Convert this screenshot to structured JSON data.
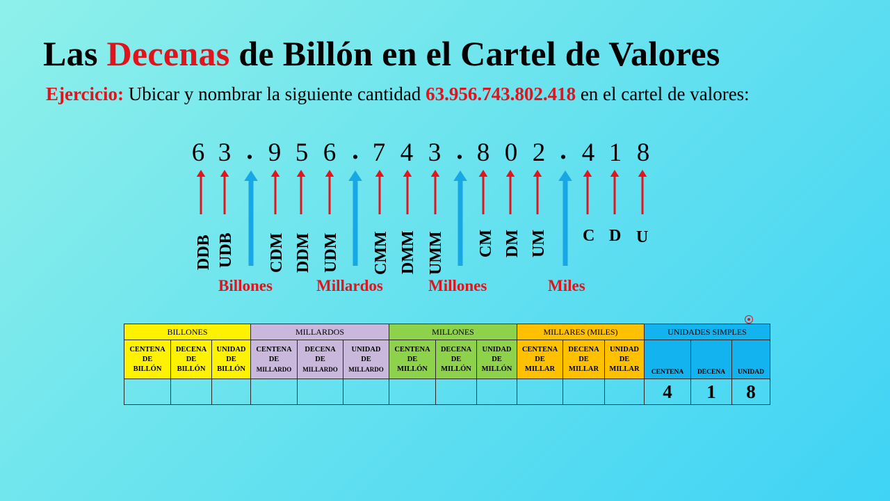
{
  "title": {
    "part1": "Las ",
    "highlight": "Decenas",
    "part2": " de Billón en el Cartel de Valores"
  },
  "exercise": {
    "label": "Ejercicio:",
    "text": " Ubicar y nombrar la siguiente cantidad ",
    "number": "63.956.743.802.418",
    "suffix": " en el cartel de valores:"
  },
  "digits": [
    "6",
    "3",
    ".",
    "9",
    "5",
    "6",
    ".",
    "7",
    "4",
    "3",
    ".",
    "8",
    "0",
    "2",
    ".",
    "4",
    "1",
    "8"
  ],
  "place_labels": [
    "DDB",
    "UDB",
    "CDM",
    "DDM",
    "UDM",
    "CMM",
    "DMM",
    "UMM",
    "CM",
    "DM",
    "UM",
    "C",
    "D",
    "U"
  ],
  "groups": [
    "Billones",
    "Millardos",
    "Millones",
    "Miles"
  ],
  "colors": {
    "accent_red": "#e0141c",
    "arrow_red": "#e3151c",
    "arrow_blue": "#17a6e6"
  },
  "table": {
    "headers": [
      "BILLONES",
      "MILLARDOS",
      "MILLONES",
      "MILLARES (MILES)",
      "UNIDADES SIMPLES"
    ],
    "sub": [
      [
        "CENTENA",
        "DE",
        "BILLÓN"
      ],
      [
        "DECENA",
        "DE",
        "BILLÓN"
      ],
      [
        "UNIDAD",
        "DE",
        "BILLÓN"
      ],
      [
        "CENTENA",
        "DE",
        "MILLARDO"
      ],
      [
        "DECENA",
        "DE",
        "MILLARDO"
      ],
      [
        "UNIDAD",
        "DE",
        "MILLARDO"
      ],
      [
        "CENTENA",
        "DE",
        "MILLÓN"
      ],
      [
        "DECENA",
        "DE",
        "MILLÓN"
      ],
      [
        "UNIDAD",
        "DE",
        "MILLÓN"
      ],
      [
        "CENTENA",
        "DE",
        "MILLAR"
      ],
      [
        "DECENA",
        "DE",
        "MILLAR"
      ],
      [
        "UNIDAD",
        "DE",
        "MILLAR"
      ],
      [
        "CENTENA"
      ],
      [
        "DECENA"
      ],
      [
        "UNIDAD"
      ]
    ],
    "values": [
      "",
      "",
      "",
      "",
      "",
      "",
      "",
      "",
      "",
      "",
      "",
      "",
      "4",
      "1",
      "8"
    ]
  }
}
